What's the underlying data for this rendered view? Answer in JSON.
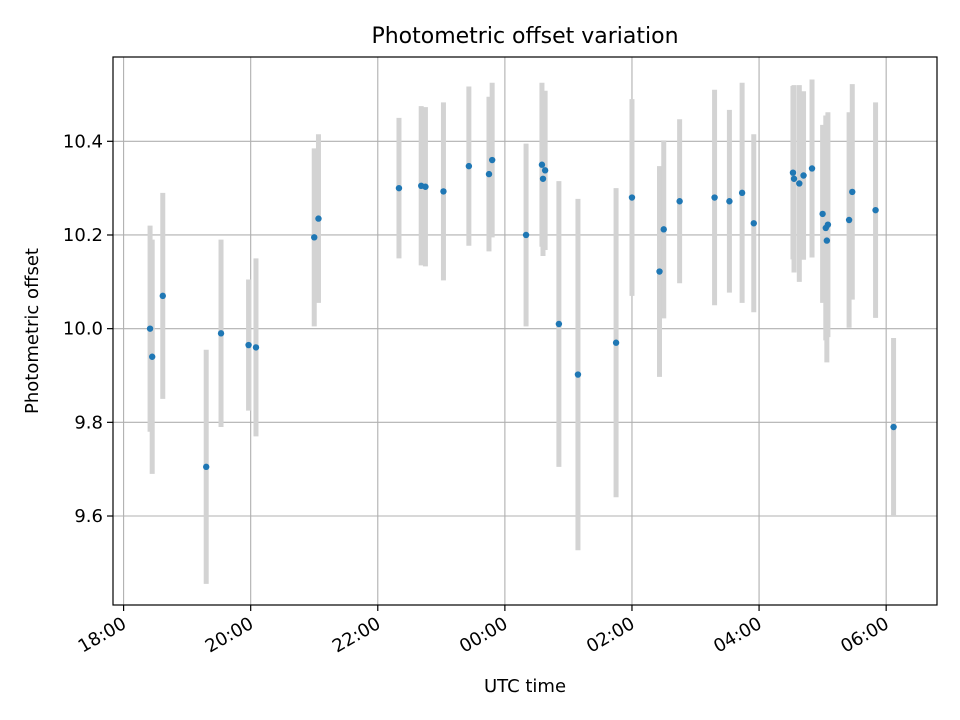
{
  "chart_data": {
    "type": "scatter",
    "title": "Photometric offset variation",
    "xlabel": "UTC time",
    "ylabel": "Photometric offset",
    "x_ticks": [
      "18:00",
      "20:00",
      "22:00",
      "00:00",
      "02:00",
      "04:00",
      "06:00"
    ],
    "y_ticks": [
      "9.6",
      "9.8",
      "10.0",
      "10.2",
      "10.4"
    ],
    "xlim": [
      "17:50",
      "06:48"
    ],
    "ylim": [
      9.41,
      10.58
    ],
    "grid": true,
    "colors": {
      "point": "#1f77b4",
      "errorbar": "#d3d3d3",
      "grid": "#b0b0b0"
    },
    "series": [
      {
        "points": [
          {
            "x": "18:25",
            "y": 10.0,
            "err": 0.22
          },
          {
            "x": "18:27",
            "y": 9.94,
            "err": 0.25
          },
          {
            "x": "18:37",
            "y": 10.07,
            "err": 0.22
          },
          {
            "x": "19:18",
            "y": 9.705,
            "err": 0.25
          },
          {
            "x": "19:32",
            "y": 9.99,
            "err": 0.2
          },
          {
            "x": "19:58",
            "y": 9.965,
            "err": 0.14
          },
          {
            "x": "20:05",
            "y": 9.96,
            "err": 0.19
          },
          {
            "x": "21:00",
            "y": 10.195,
            "err": 0.19
          },
          {
            "x": "21:04",
            "y": 10.235,
            "err": 0.18
          },
          {
            "x": "22:20",
            "y": 10.3,
            "err": 0.15
          },
          {
            "x": "22:41",
            "y": 10.305,
            "err": 0.17
          },
          {
            "x": "22:45",
            "y": 10.303,
            "err": 0.17
          },
          {
            "x": "23:02",
            "y": 10.293,
            "err": 0.19
          },
          {
            "x": "23:26",
            "y": 10.347,
            "err": 0.17
          },
          {
            "x": "23:45",
            "y": 10.33,
            "err": 0.165
          },
          {
            "x": "23:48",
            "y": 10.36,
            "err": 0.165
          },
          {
            "x": "00:20",
            "y": 10.2,
            "err": 0.195
          },
          {
            "x": "00:35",
            "y": 10.35,
            "err": 0.175
          },
          {
            "x": "00:36",
            "y": 10.32,
            "err": 0.165
          },
          {
            "x": "00:38",
            "y": 10.338,
            "err": 0.17
          },
          {
            "x": "00:51",
            "y": 10.01,
            "err": 0.305
          },
          {
            "x": "01:09",
            "y": 9.902,
            "err": 0.375
          },
          {
            "x": "01:45",
            "y": 9.97,
            "err": 0.33
          },
          {
            "x": "02:00",
            "y": 10.28,
            "err": 0.21
          },
          {
            "x": "02:26",
            "y": 10.122,
            "err": 0.225
          },
          {
            "x": "02:30",
            "y": 10.212,
            "err": 0.19
          },
          {
            "x": "02:45",
            "y": 10.272,
            "err": 0.175
          },
          {
            "x": "03:18",
            "y": 10.28,
            "err": 0.23
          },
          {
            "x": "03:32",
            "y": 10.272,
            "err": 0.195
          },
          {
            "x": "03:44",
            "y": 10.29,
            "err": 0.235
          },
          {
            "x": "03:55",
            "y": 10.225,
            "err": 0.19
          },
          {
            "x": "04:32",
            "y": 10.333,
            "err": 0.185
          },
          {
            "x": "04:33",
            "y": 10.32,
            "err": 0.2
          },
          {
            "x": "04:38",
            "y": 10.31,
            "err": 0.21
          },
          {
            "x": "04:42",
            "y": 10.327,
            "err": 0.18
          },
          {
            "x": "04:50",
            "y": 10.342,
            "err": 0.19
          },
          {
            "x": "05:00",
            "y": 10.245,
            "err": 0.19
          },
          {
            "x": "05:03",
            "y": 10.215,
            "err": 0.24
          },
          {
            "x": "05:04",
            "y": 10.188,
            "err": 0.26
          },
          {
            "x": "05:05",
            "y": 10.222,
            "err": 0.24
          },
          {
            "x": "05:25",
            "y": 10.232,
            "err": 0.23
          },
          {
            "x": "05:28",
            "y": 10.292,
            "err": 0.23
          },
          {
            "x": "05:50",
            "y": 10.253,
            "err": 0.23
          },
          {
            "x": "06:07",
            "y": 9.79,
            "err": 0.19
          }
        ]
      }
    ]
  }
}
